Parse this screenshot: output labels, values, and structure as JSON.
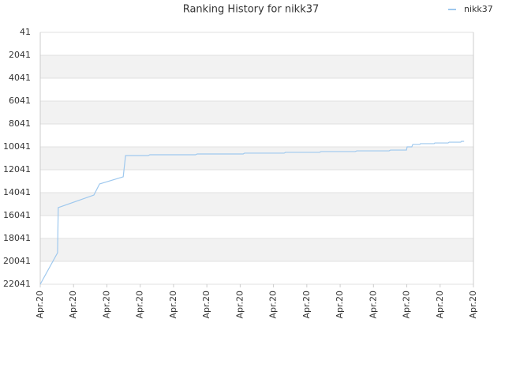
{
  "chart_data": {
    "type": "line",
    "title": "Ranking History for nikk37",
    "x": [
      0,
      0.52,
      0.54,
      1.61,
      1.78,
      2.49,
      2.56,
      3.24,
      3.29,
      4.66,
      4.71,
      6.09,
      6.13,
      7.32,
      7.36,
      8.38,
      8.43,
      9.45,
      9.5,
      10.47,
      10.51,
      10.99,
      11.01,
      11.15,
      11.18,
      11.39,
      11.41,
      11.82,
      11.84,
      12.24,
      12.27,
      12.62,
      12.64,
      12.72
    ],
    "series": [
      {
        "name": "nikk37",
        "color": "#9ec8ee",
        "values": [
          22041,
          19290,
          15350,
          14250,
          13280,
          12660,
          10800,
          10800,
          10730,
          10730,
          10660,
          10660,
          10590,
          10590,
          10520,
          10520,
          10450,
          10450,
          10390,
          10390,
          10320,
          10320,
          10040,
          10040,
          9830,
          9830,
          9760,
          9760,
          9700,
          9700,
          9630,
          9630,
          9560,
          9560
        ]
      }
    ],
    "xlim": [
      0,
      13
    ],
    "xticks": [
      {
        "value": 0,
        "label": "Apr.20"
      },
      {
        "value": 1,
        "label": "Apr.20"
      },
      {
        "value": 2,
        "label": "Apr.20"
      },
      {
        "value": 3,
        "label": "Apr.20"
      },
      {
        "value": 4,
        "label": "Apr.20"
      },
      {
        "value": 5,
        "label": "Apr.20"
      },
      {
        "value": 6,
        "label": "Apr.20"
      },
      {
        "value": 7,
        "label": "Apr.20"
      },
      {
        "value": 8,
        "label": "Apr.20"
      },
      {
        "value": 9,
        "label": "Apr.20"
      },
      {
        "value": 10,
        "label": "Apr.20"
      },
      {
        "value": 11,
        "label": "Apr.20"
      },
      {
        "value": 12,
        "label": "Apr.20"
      },
      {
        "value": 13,
        "label": "Apr.20"
      }
    ],
    "ylim": [
      22041,
      41
    ],
    "yticks": [
      41,
      2041,
      4041,
      6041,
      8041,
      10041,
      12041,
      14041,
      16041,
      18041,
      20041,
      22041
    ],
    "grid": true,
    "legend": "top-right"
  }
}
